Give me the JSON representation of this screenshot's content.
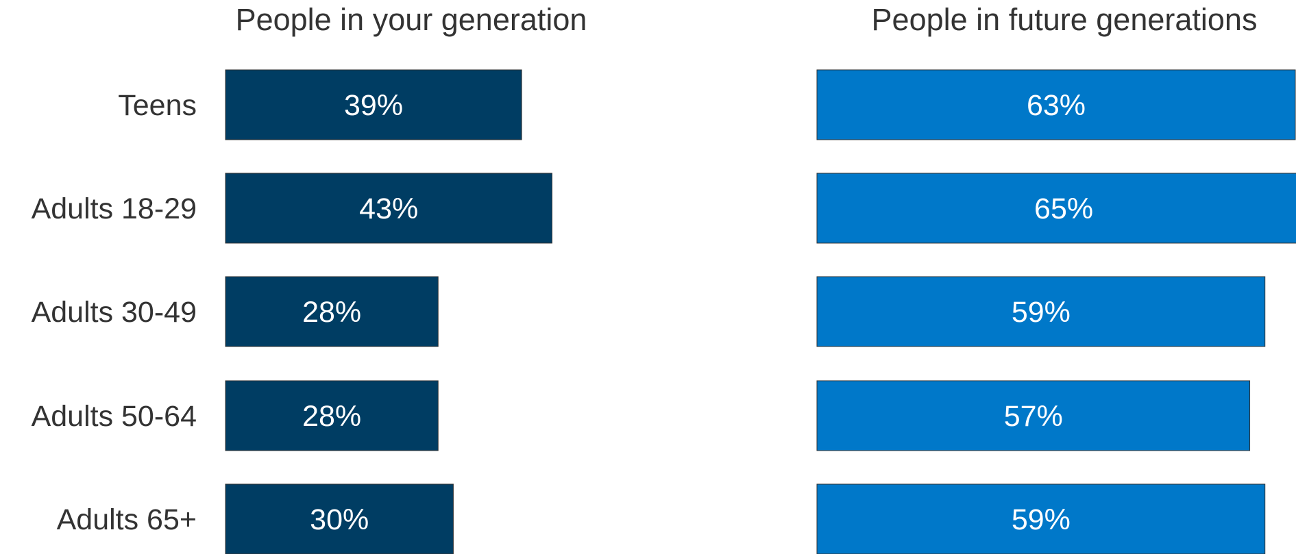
{
  "chart_data": {
    "type": "bar",
    "orientation": "horizontal",
    "categories": [
      "Teens",
      "Adults 18-29",
      "Adults 30-49",
      "Adults 50-64",
      "Adults 65+"
    ],
    "series": [
      {
        "name": "People in your generation",
        "values": [
          39,
          43,
          28,
          28,
          30
        ],
        "labels": [
          "39%",
          "43%",
          "28%",
          "28%",
          "30%"
        ],
        "color": "#003d63"
      },
      {
        "name": "People in future generations",
        "values": [
          63,
          65,
          59,
          57,
          59
        ],
        "labels": [
          "63%",
          "65%",
          "59%",
          "57%",
          "59%"
        ],
        "color": "#0078c9"
      }
    ],
    "value_unit": "%",
    "axis_range": [
      0,
      65
    ],
    "grid": false,
    "legend": "none"
  }
}
